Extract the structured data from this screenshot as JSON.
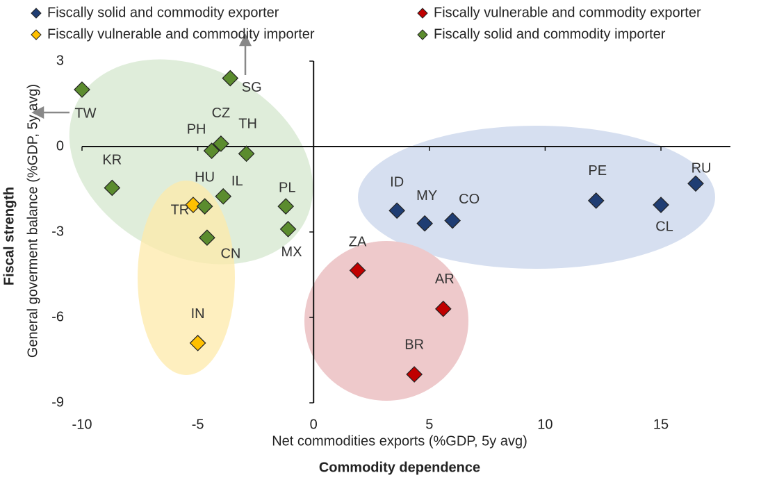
{
  "chart_data": {
    "type": "scatter",
    "x_label": "Net commodities exports (%GDP, 5y avg)",
    "x_title": "Commodity dependence",
    "y_label": "General goverment balance (%GDP, 5y avg)",
    "y_title": "Fiscal strength",
    "xlim": [
      -10,
      18
    ],
    "ylim": [
      -9,
      3
    ],
    "xticks": [
      -10,
      -5,
      0,
      5,
      10,
      15
    ],
    "yticks": [
      -9,
      -6,
      -3,
      0,
      3
    ],
    "series": [
      {
        "name": "Fiscally solid and commodity exporter",
        "color": "#1f3d73",
        "labels": [
          "ID",
          "MY",
          "CO",
          "PE",
          "CL",
          "RU"
        ],
        "x": [
          3.6,
          4.8,
          6.0,
          12.2,
          15.0,
          16.5
        ],
        "values": [
          -2.25,
          -2.7,
          -2.6,
          -1.9,
          -2.05,
          -1.3
        ]
      },
      {
        "name": "Fiscally vulnerable and commodity exporter",
        "color": "#c00000",
        "labels": [
          "ZA",
          "AR",
          "BR"
        ],
        "x": [
          1.9,
          5.6,
          4.35
        ],
        "values": [
          -4.35,
          -5.7,
          -8.0
        ]
      },
      {
        "name": "Fiscally vulnerable and commodity importer",
        "color": "#ffc000",
        "labels": [
          "TR",
          "IN"
        ],
        "x": [
          -5.2,
          -5.0
        ],
        "values": [
          -2.05,
          -6.9
        ]
      },
      {
        "name": "Fiscally solid and commodity importer",
        "color": "#5b8c2e",
        "labels": [
          "TW",
          "SG",
          "CZ",
          "PH",
          "TH",
          "KR",
          "HU",
          "IL",
          "PL",
          "MX",
          "CN"
        ],
        "x": [
          -10.0,
          -3.6,
          -4.0,
          -4.4,
          -2.9,
          -8.7,
          -4.7,
          -3.9,
          -1.2,
          -1.1,
          -4.6
        ],
        "values": [
          2.0,
          2.4,
          0.1,
          -0.15,
          -0.25,
          -1.45,
          -2.1,
          -1.75,
          -2.1,
          -2.9,
          -3.2
        ]
      }
    ]
  }
}
